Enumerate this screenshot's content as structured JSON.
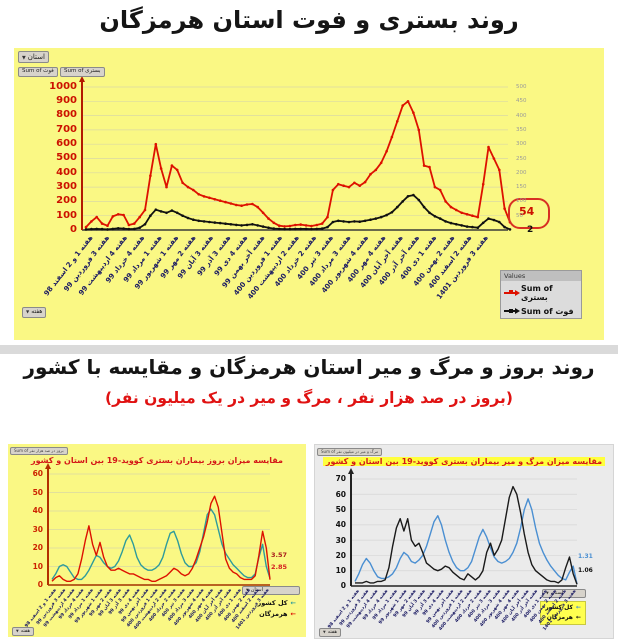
{
  "icons": {
    "filter_dropdown": "▼"
  },
  "section1": {
    "title": "روند بستری و فوت استان هرمزگان",
    "filter_chip": "استان",
    "field_chips": [
      "Sum of فوت",
      "Sum of بستری"
    ],
    "week_chip": "هفته",
    "legend_header": "Values"
  },
  "section2": {
    "title": "روند بروز و مرگ و میر استان هرمزگان و مقایسه با کشور",
    "subtitle": "(بروز در صد هزار نفر ، مرگ و میر در یک میلیون نفر)"
  },
  "section3": {
    "inc_field_chip": "Sum of بروز در صد هزار نفر",
    "mort_field_chip": "Sum of مرگ و میر در میلیون نفر"
  },
  "x_labels_shared": [
    "هفته 1 و 2 اسفند 98",
    "هفته 3 فروردین 99",
    "هفته 4 اردیبهشت 99",
    "هفته 4 خرداد 99",
    "هفته 1 مرداد 99",
    "هفته 1 شهریور 99",
    "هفته 2 مهر 99",
    "هفته 3 آبان 99",
    "هفته 3 آذر 99",
    "هفته 4 دی 99",
    "هفته آخر بهمن 99",
    "هفته 1 فروردین 400",
    "هفته 2 اردیبهشت 400",
    "هفته 2 خرداد 400",
    "هفته 3 تیر 400",
    "هفته 3 مرداد 400",
    "هفته 4 شهریور 400",
    "هفته 4 مهر 400",
    "هفته آخر آبان 400",
    "هفته آخر آذر 400",
    "هفته 1 دی 400",
    "هفته 2 بهمن 400",
    "هفته 2 اسفند 400",
    "هفته 3 فروردین 1401"
  ],
  "chart_data": [
    {
      "id": "hospitalization-death-trend",
      "type": "line",
      "title": "روند بستری و فوت استان هرمزگان",
      "y_left": {
        "min": 0,
        "max": 1000,
        "step": 100,
        "color": "#cc1100",
        "ticks": [
          1000,
          900,
          800,
          700,
          600,
          500,
          400,
          300,
          200,
          100,
          0
        ]
      },
      "y_right": {
        "min": 0,
        "max": 500,
        "step": 50,
        "color": "#9a9a9a",
        "ticks": [
          500,
          450,
          400,
          350,
          300,
          250,
          200,
          150,
          100,
          50
        ]
      },
      "grid": true,
      "legend_position": "right-bottom",
      "series": [
        {
          "name": "Sum of بستری",
          "axis": "left",
          "color": "#dd1100",
          "values": [
            20,
            60,
            90,
            45,
            30,
            95,
            110,
            105,
            35,
            45,
            90,
            140,
            380,
            600,
            430,
            300,
            450,
            420,
            330,
            300,
            280,
            250,
            235,
            225,
            215,
            205,
            195,
            185,
            175,
            170,
            178,
            182,
            160,
            120,
            80,
            50,
            30,
            25,
            28,
            35,
            38,
            32,
            28,
            35,
            45,
            90,
            280,
            320,
            310,
            300,
            330,
            310,
            335,
            390,
            420,
            470,
            550,
            650,
            760,
            870,
            900,
            820,
            700,
            450,
            440,
            300,
            280,
            200,
            160,
            140,
            120,
            110,
            100,
            90,
            320,
            580,
            500,
            420,
            150,
            54
          ]
        },
        {
          "name": "Sum of فوت",
          "axis": "right",
          "color": "#111111",
          "values": [
            2,
            3,
            4,
            3,
            2,
            4,
            6,
            5,
            3,
            4,
            8,
            20,
            50,
            71,
            65,
            60,
            68,
            60,
            50,
            42,
            36,
            32,
            30,
            28,
            26,
            24,
            22,
            20,
            18,
            16,
            18,
            20,
            16,
            12,
            8,
            5,
            4,
            3,
            3,
            4,
            4,
            4,
            3,
            4,
            5,
            10,
            28,
            32,
            30,
            28,
            30,
            29,
            32,
            36,
            40,
            45,
            52,
            62,
            80,
            100,
            118,
            122,
            105,
            80,
            60,
            48,
            40,
            30,
            24,
            20,
            16,
            12,
            10,
            8,
            25,
            40,
            35,
            28,
            10,
            2
          ]
        }
      ],
      "end_labels": [
        {
          "text": "54",
          "color": "#cc1100"
        },
        {
          "text": "2",
          "color": "#111111"
        }
      ]
    },
    {
      "id": "incidence-comparison",
      "type": "line",
      "title": "مقایسه میزان بروز بیماران بستری کووید-19 بین استان و کشور",
      "y_left": {
        "min": 0,
        "max": 60,
        "step": 10,
        "color": "#cc2200",
        "ticks": [
          60,
          50,
          40,
          30,
          20,
          10,
          0
        ]
      },
      "grid": true,
      "legend_position": "right-bottom",
      "series": [
        {
          "name": "کل کشور",
          "axis": "left",
          "color": "#2e9b9b",
          "values": [
            3,
            6,
            10,
            11,
            10,
            7,
            4,
            3,
            3,
            5,
            8,
            12,
            16,
            15,
            12,
            10,
            9,
            10,
            13,
            18,
            24,
            27,
            22,
            15,
            11,
            9,
            8,
            8,
            9,
            11,
            15,
            22,
            28,
            29,
            24,
            17,
            12,
            10,
            10,
            12,
            18,
            28,
            38,
            41,
            38,
            30,
            22,
            17,
            14,
            11,
            9,
            7,
            5,
            4,
            4,
            6,
            15,
            22,
            10,
            3.57
          ]
        },
        {
          "name": "هرمزگان",
          "axis": "left",
          "color": "#dd1100",
          "values": [
            2,
            4,
            5,
            3,
            2,
            2,
            3,
            6,
            14,
            24,
            32,
            22,
            16,
            23,
            15,
            10,
            8,
            8,
            9,
            8,
            7,
            6,
            6,
            5,
            4,
            3,
            3,
            2,
            2,
            3,
            4,
            5,
            7,
            9,
            8,
            6,
            5,
            6,
            9,
            14,
            20,
            26,
            34,
            44,
            48,
            42,
            28,
            14,
            9,
            7,
            6,
            4,
            3,
            3,
            3,
            5,
            16,
            29,
            20,
            2.85
          ]
        }
      ],
      "end_labels": [
        {
          "text": "3.57",
          "color": "#a81c1c"
        },
        {
          "text": "2.85",
          "color": "#d42020"
        }
      ]
    },
    {
      "id": "mortality-comparison",
      "type": "line",
      "title": "مقایسه میزان مرگ و میر بیماران بستری کووید-19 بین استان و کشور",
      "y_left": {
        "min": 0,
        "max": 70,
        "step": 10,
        "color": "#111111",
        "ticks": [
          70,
          60,
          50,
          40,
          30,
          20,
          10,
          0
        ]
      },
      "grid": true,
      "legend_position": "right-bottom",
      "series": [
        {
          "name": "کل کشور",
          "axis": "left",
          "color": "#4a8fd2",
          "values": [
            3,
            8,
            14,
            18,
            15,
            10,
            6,
            5,
            5,
            6,
            8,
            12,
            18,
            22,
            20,
            16,
            15,
            17,
            20,
            26,
            34,
            42,
            46,
            40,
            30,
            22,
            16,
            12,
            10,
            10,
            12,
            16,
            24,
            32,
            37,
            32,
            25,
            19,
            16,
            15,
            16,
            18,
            22,
            28,
            38,
            50,
            57,
            50,
            38,
            28,
            22,
            17,
            13,
            10,
            7,
            5,
            4,
            9,
            13,
            1.31
          ]
        },
        {
          "name": "هرمزگان",
          "axis": "left",
          "color": "#1a1a1a",
          "values": [
            2,
            2,
            2,
            3,
            2,
            2,
            3,
            3,
            4,
            12,
            26,
            38,
            44,
            36,
            44,
            30,
            26,
            28,
            22,
            15,
            13,
            11,
            10,
            11,
            13,
            12,
            9,
            7,
            5,
            4,
            8,
            6,
            4,
            6,
            10,
            22,
            28,
            20,
            24,
            30,
            44,
            58,
            65,
            60,
            48,
            34,
            22,
            14,
            10,
            8,
            6,
            4,
            3,
            3,
            2,
            4,
            12,
            19,
            8,
            1.06
          ]
        }
      ],
      "end_labels": [
        {
          "text": "1.31",
          "color": "#4a8fd2"
        },
        {
          "text": "1.06",
          "color": "#111111"
        }
      ]
    }
  ]
}
